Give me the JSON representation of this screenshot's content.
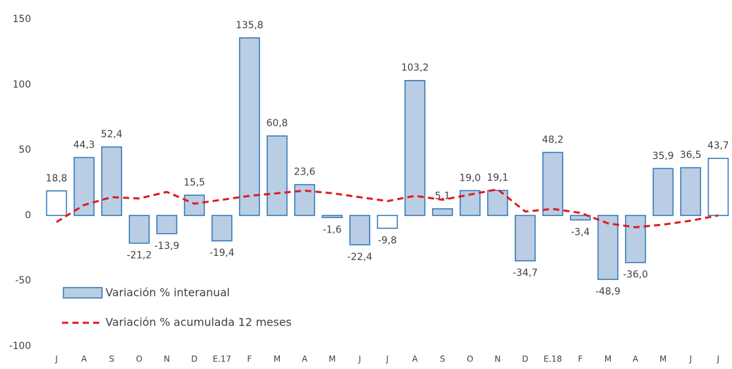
{
  "chart_data": {
    "type": "bar-line",
    "categories": [
      "J",
      "A",
      "S",
      "O",
      "N",
      "D",
      "E.17",
      "F",
      "M",
      "A",
      "M",
      "J",
      "J",
      "A",
      "S",
      "O",
      "N",
      "D",
      "E.18",
      "F",
      "M",
      "A",
      "M",
      "J",
      "J"
    ],
    "series": [
      {
        "name": "Variación % interanual",
        "type": "bar",
        "color": "#b9cde5",
        "stroke": "#2e75b6",
        "colors": [
          "#ffffff",
          "#b9cde5",
          "#b9cde5",
          "#b9cde5",
          "#b9cde5",
          "#b9cde5",
          "#b9cde5",
          "#b9cde5",
          "#b9cde5",
          "#b9cde5",
          "#b9cde5",
          "#b9cde5",
          "#ffffff",
          "#b9cde5",
          "#b9cde5",
          "#b9cde5",
          "#b9cde5",
          "#b9cde5",
          "#b9cde5",
          "#b9cde5",
          "#b9cde5",
          "#b9cde5",
          "#b9cde5",
          "#b9cde5",
          "#ffffff"
        ],
        "values": [
          18.8,
          44.3,
          52.4,
          -21.2,
          -13.9,
          15.5,
          -19.4,
          135.8,
          60.8,
          23.6,
          -1.6,
          -22.4,
          -9.8,
          103.2,
          5.1,
          19.0,
          19.1,
          -34.7,
          48.2,
          -3.4,
          -48.9,
          -36.0,
          35.9,
          36.5,
          43.7
        ],
        "value_labels": [
          "18,8",
          "44,3",
          "52,4",
          "-21,2",
          "-13,9",
          "15,5",
          "-19,4",
          "135,8",
          "60,8",
          "23,6",
          "-1,6",
          "-22,4",
          "-9,8",
          "103,2",
          "5,1",
          "19,0",
          "19,1",
          "-34,7",
          "48,2",
          "-3,4",
          "-48,9",
          "-36,0",
          "35,9",
          "36,5",
          "43,7"
        ]
      },
      {
        "name": "Variación % acumulada 12 meses",
        "type": "line",
        "color": "#e31a1c",
        "dashed": true,
        "values": [
          -5,
          8,
          14,
          13,
          18,
          9,
          12,
          15,
          17,
          19,
          17,
          14,
          11,
          15,
          12,
          16,
          20,
          3,
          5,
          2,
          -6,
          -9,
          -7,
          -4,
          0
        ]
      }
    ],
    "ylim": [
      -100,
      150
    ],
    "yticks": [
      -100,
      -50,
      0,
      50,
      100,
      150
    ],
    "grid": false,
    "legend": "lower-left"
  }
}
